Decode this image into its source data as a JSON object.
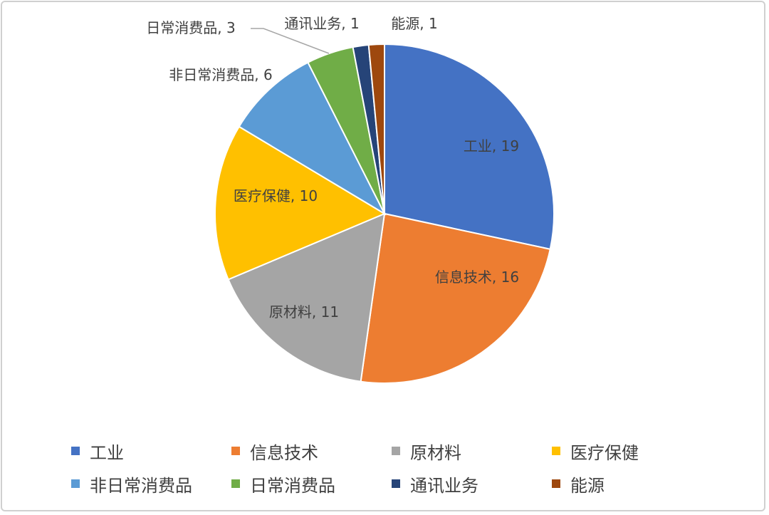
{
  "chart_data": {
    "type": "pie",
    "categories": [
      "工业",
      "信息技术",
      "原材料",
      "医疗保健",
      "非日常消费品",
      "日常消费品",
      "通讯业务",
      "能源"
    ],
    "values": [
      19,
      16,
      11,
      10,
      6,
      3,
      1,
      1
    ],
    "data_labels": [
      "工业, 19",
      "信息技术, 16",
      "原材料, 11",
      "医疗保健, 10",
      "非日常消费品, 6",
      "日常消费品, 3",
      "通讯业务, 1",
      "能源, 1"
    ],
    "colors": [
      "#4472C4",
      "#ED7D31",
      "#A5A5A5",
      "#FFC000",
      "#5B9BD5",
      "#70AD47",
      "#264478",
      "#9E480E"
    ],
    "start_angle": "top",
    "direction": "clockwise",
    "legend_position": "bottom",
    "title": ""
  }
}
